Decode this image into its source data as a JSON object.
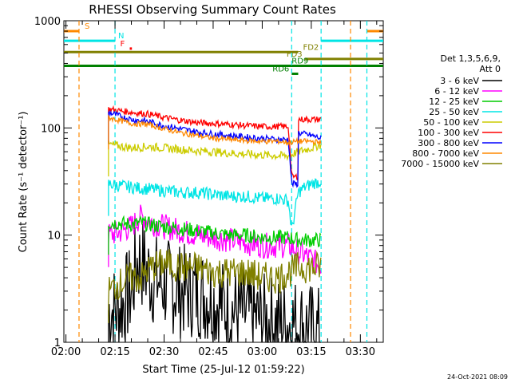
{
  "chart_data": {
    "type": "line",
    "title": "RHESSI Observing Summary Count Rates",
    "xlabel": "Start Time (25-Jul-12 01:59:22)",
    "ylabel": "Count Rate (s⁻¹ detector⁻¹)",
    "y_scale": "log",
    "ylim": [
      1,
      1000
    ],
    "xlim": [
      "01:59:22",
      "03:37"
    ],
    "x_ticks": [
      "02:00",
      "02:15",
      "02:30",
      "02:45",
      "03:00",
      "03:15",
      "03:30"
    ],
    "y_ticks": [
      "1",
      "10",
      "100",
      "1000"
    ],
    "legend_title": [
      "Det 1,3,5,6,9,",
      "Att 0"
    ],
    "legend_position": "right",
    "footer_date": "24-Oct-2021 08:09",
    "series": [
      {
        "name": "3 - 6 keV",
        "color": "#000000",
        "x": [
          "02:13",
          "02:16",
          "02:20",
          "02:22",
          "02:24",
          "02:26",
          "02:30",
          "02:35",
          "02:40",
          "02:45",
          "02:50",
          "02:55",
          "03:00",
          "03:05",
          "03:08",
          "03:11",
          "03:15",
          "03:18"
        ],
        "y": [
          2,
          2,
          3,
          6,
          5,
          4,
          3.5,
          3,
          3,
          2.5,
          2,
          1.8,
          1.6,
          1.5,
          1.5,
          1.5,
          1.3,
          1.2
        ]
      },
      {
        "name": "6 - 12 keV",
        "color": "#ff00ff",
        "x": [
          "02:13",
          "02:16",
          "02:20",
          "02:23",
          "02:26",
          "02:30",
          "02:35",
          "02:40",
          "02:45",
          "02:50",
          "02:55",
          "03:00",
          "03:05",
          "03:08",
          "03:11",
          "03:15",
          "03:18"
        ],
        "y": [
          10,
          10.5,
          12,
          15,
          13,
          12,
          11,
          10,
          9.5,
          9,
          8.5,
          8,
          8,
          8,
          7,
          6,
          5
        ]
      },
      {
        "name": "12 - 25 keV",
        "color": "#00cc00",
        "x": [
          "02:13",
          "02:16",
          "02:20",
          "02:23",
          "02:26",
          "02:30",
          "02:35",
          "02:40",
          "02:45",
          "02:50",
          "02:55",
          "03:00",
          "03:05",
          "03:08",
          "03:11",
          "03:15",
          "03:18"
        ],
        "y": [
          13,
          13,
          12.5,
          13,
          12.5,
          12,
          11.5,
          11,
          10.5,
          10,
          10,
          9.5,
          9.5,
          9.5,
          9,
          9,
          9
        ]
      },
      {
        "name": "25 - 50 keV",
        "color": "#00e5e5",
        "x": [
          "02:13",
          "02:16",
          "02:20",
          "02:25",
          "02:30",
          "02:35",
          "02:40",
          "02:45",
          "02:50",
          "02:55",
          "03:00",
          "03:05",
          "03:08",
          "03:09",
          "03:11",
          "03:13",
          "03:15",
          "03:18"
        ],
        "y": [
          30,
          29,
          28,
          27,
          26,
          25,
          25,
          24,
          23,
          23,
          22,
          22,
          21,
          11,
          25,
          28,
          30,
          32
        ]
      },
      {
        "name": "50 - 100 keV",
        "color": "#cccc00",
        "x": [
          "02:13",
          "02:16",
          "02:20",
          "02:25",
          "02:30",
          "02:35",
          "02:40",
          "02:45",
          "02:50",
          "02:55",
          "03:00",
          "03:05",
          "03:08",
          "03:11",
          "03:15",
          "03:18"
        ],
        "y": [
          70,
          68,
          65,
          67,
          65,
          63,
          61,
          60,
          58,
          57,
          56,
          55,
          55,
          60,
          65,
          70
        ]
      },
      {
        "name": "100 - 300 keV",
        "color": "#ff0000",
        "x": [
          "02:13",
          "02:16",
          "02:20",
          "02:25",
          "02:30",
          "02:35",
          "02:40",
          "02:45",
          "02:50",
          "02:55",
          "03:00",
          "03:05",
          "03:08",
          "03:09",
          "03:11",
          "03:11",
          "03:15",
          "03:18"
        ],
        "y": [
          150,
          145,
          140,
          135,
          125,
          118,
          112,
          110,
          108,
          105,
          103,
          103,
          103,
          35,
          35,
          120,
          120,
          120
        ]
      },
      {
        "name": "300 - 800 keV",
        "color": "#0000ff",
        "x": [
          "02:13",
          "02:16",
          "02:20",
          "02:25",
          "02:30",
          "02:35",
          "02:40",
          "02:45",
          "02:50",
          "02:55",
          "03:00",
          "03:05",
          "03:08",
          "03:09",
          "03:11",
          "03:11",
          "03:15",
          "03:18"
        ],
        "y": [
          140,
          130,
          120,
          115,
          105,
          98,
          92,
          88,
          85,
          82,
          80,
          78,
          78,
          30,
          30,
          90,
          85,
          80
        ]
      },
      {
        "name": "800 - 7000 keV",
        "color": "#ff8800",
        "x": [
          "02:13",
          "02:16",
          "02:20",
          "02:25",
          "02:30",
          "02:35",
          "02:40",
          "02:45",
          "02:50",
          "02:55",
          "03:00",
          "03:05",
          "03:08",
          "03:11",
          "03:15",
          "03:18"
        ],
        "y": [
          125,
          118,
          110,
          108,
          98,
          90,
          85,
          80,
          78,
          76,
          75,
          75,
          73,
          75,
          75,
          73
        ]
      },
      {
        "name": "7000 - 15000 keV",
        "color": "#808000",
        "x": [
          "02:13",
          "02:16",
          "02:20",
          "02:23",
          "02:26",
          "02:30",
          "02:35",
          "02:40",
          "02:45",
          "02:50",
          "02:55",
          "03:00",
          "03:05",
          "03:08",
          "03:11",
          "03:15",
          "03:18"
        ],
        "y": [
          3,
          3.5,
          4,
          4,
          5,
          5.5,
          5,
          5,
          4.5,
          4.5,
          4.5,
          4,
          4,
          4.5,
          5,
          5,
          5
        ]
      }
    ],
    "flags": [
      {
        "label": "S",
        "color": "#ff8800",
        "y": 800,
        "segments": [
          [
            "01:59:22",
            "02:04"
          ],
          [
            "03:32",
            "03:37"
          ]
        ]
      },
      {
        "label": "N",
        "color": "#00e5e5",
        "y": 650,
        "segments": [
          [
            "01:59:22",
            "02:15"
          ],
          [
            "03:18",
            "03:37"
          ]
        ]
      },
      {
        "label": "F",
        "color": "#ff0000",
        "y": 550,
        "segments": [
          [
            "02:19:30",
            "02:20:10"
          ]
        ]
      },
      {
        "label": "FD2",
        "color": "#808000",
        "y": 510,
        "segments": [
          [
            "01:59:22",
            "03:11"
          ]
        ]
      },
      {
        "label": "FD3",
        "color": "#808000",
        "y": 440,
        "segments": [
          [
            "03:13",
            "03:37"
          ]
        ]
      },
      {
        "label": "RD9",
        "color": "#008000",
        "y": 380,
        "segments": [
          [
            "01:59:22",
            "03:37"
          ]
        ]
      },
      {
        "label": "RD6",
        "color": "#008000",
        "y": 320,
        "segments": [
          [
            "03:09",
            "03:11"
          ]
        ]
      }
    ],
    "vertical_markers": [
      {
        "x": "02:04",
        "color": "#ff8800"
      },
      {
        "x": "02:15",
        "color": "#00e5e5"
      },
      {
        "x": "03:09",
        "color": "#00e5e5"
      },
      {
        "x": "03:18",
        "color": "#00e5e5"
      },
      {
        "x": "03:27",
        "color": "#ff8800"
      },
      {
        "x": "03:32",
        "color": "#00e5e5"
      }
    ]
  }
}
